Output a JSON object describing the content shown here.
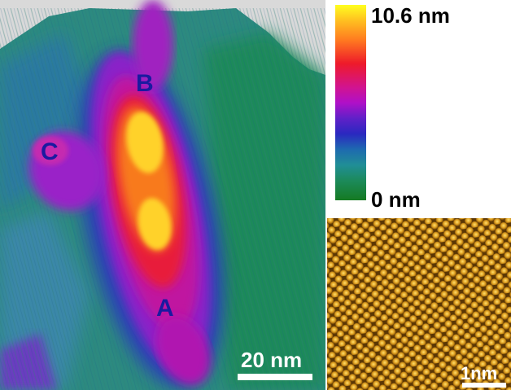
{
  "labels": {
    "a": "A",
    "b": "B",
    "c": "C"
  },
  "main_scalebar": "20 nm",
  "colorbar": {
    "max_label": "10.6 nm",
    "min_label": "0 nm"
  },
  "inset_scalebar": "1nm"
}
